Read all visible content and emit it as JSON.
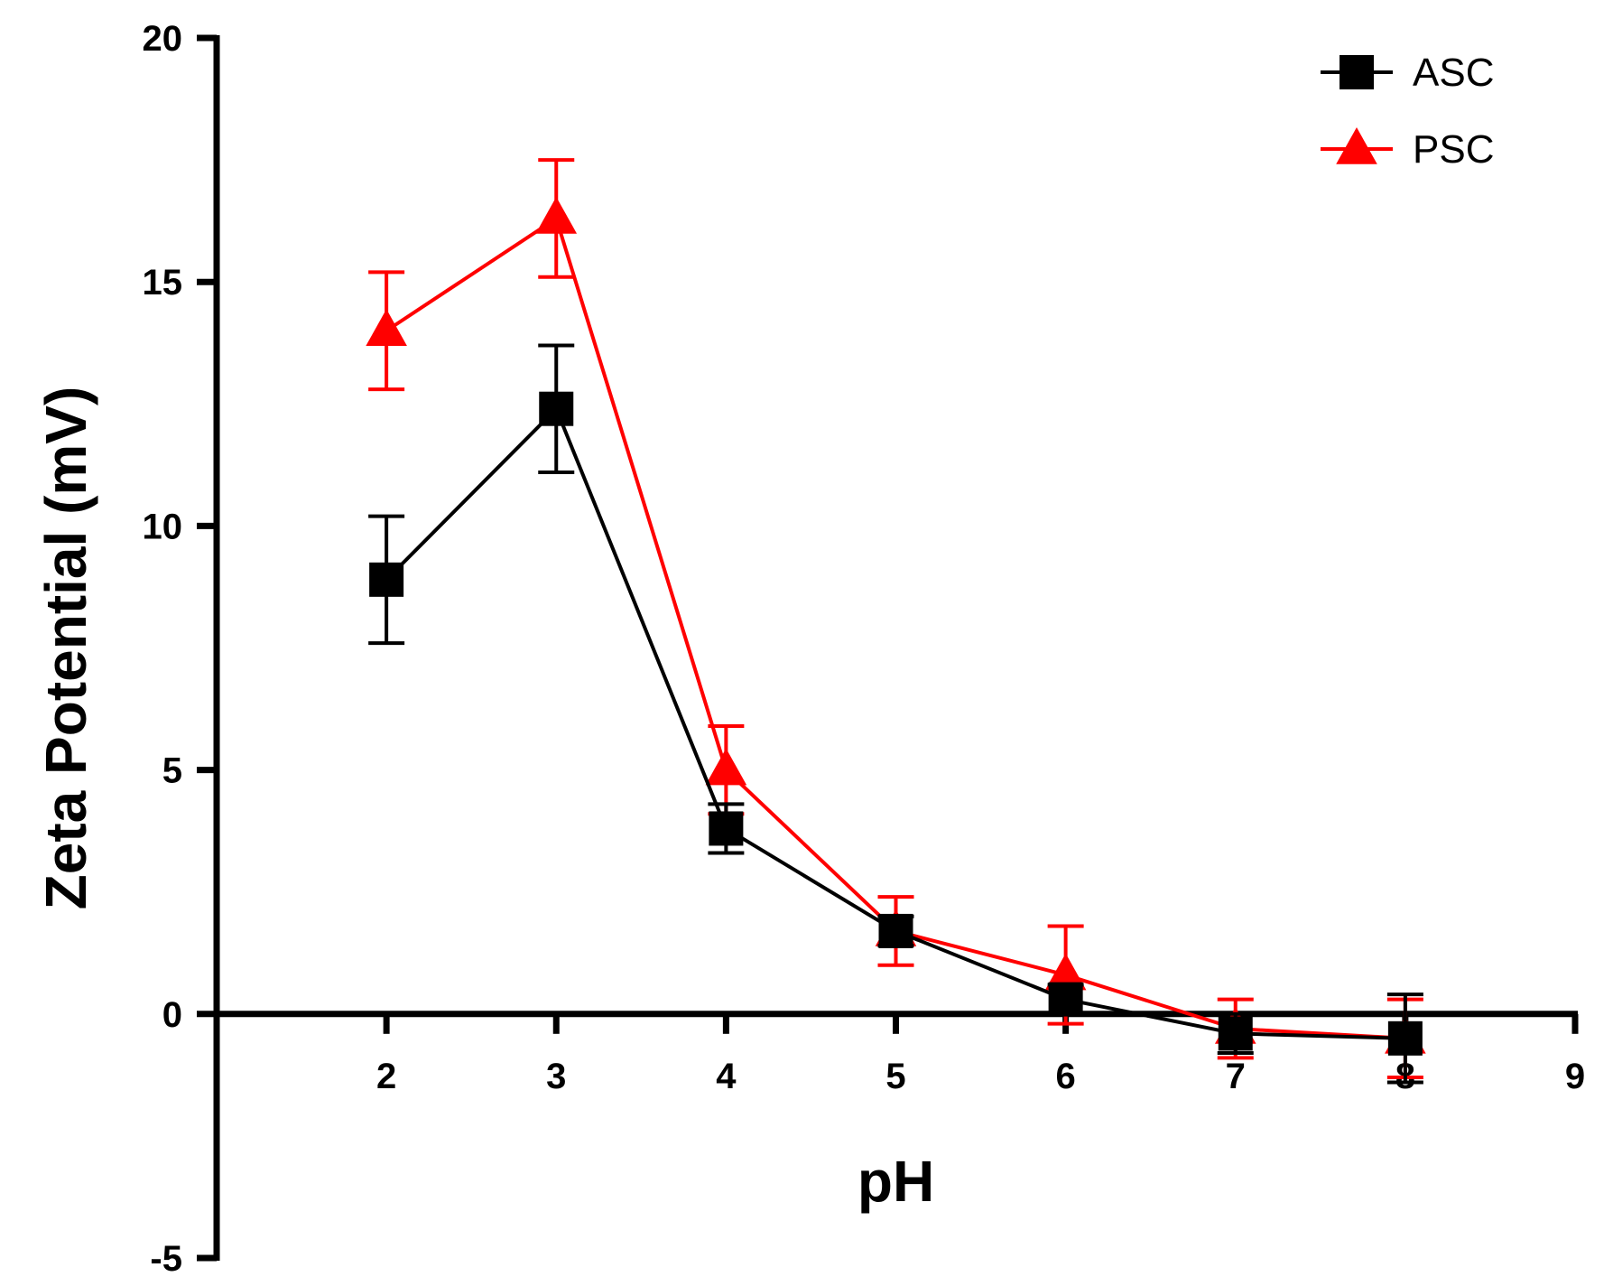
{
  "chart_data": {
    "type": "line",
    "title": "",
    "xlabel": "pH",
    "ylabel": "Zeta Potential (mV)",
    "xlim": [
      1,
      9
    ],
    "ylim": [
      -5,
      20
    ],
    "x_ticks": [
      2,
      3,
      4,
      5,
      6,
      7,
      8,
      9
    ],
    "y_ticks": [
      -5,
      0,
      5,
      10,
      15,
      20
    ],
    "x_axis_crosses_at_y": 0,
    "legend_position": "top-right",
    "series": [
      {
        "name": "ASC",
        "color": "#000000",
        "marker": "square",
        "x": [
          2,
          3,
          4,
          5,
          6,
          7,
          8
        ],
        "values": [
          8.9,
          12.4,
          3.8,
          1.7,
          0.3,
          -0.4,
          -0.5
        ],
        "errors": [
          1.3,
          1.3,
          0.5,
          0.3,
          0.3,
          0.4,
          0.9
        ]
      },
      {
        "name": "PSC",
        "color": "#ff0000",
        "marker": "triangle",
        "x": [
          2,
          3,
          4,
          5,
          6,
          7,
          8
        ],
        "values": [
          14.0,
          16.3,
          5.0,
          1.7,
          0.8,
          -0.3,
          -0.5
        ],
        "errors": [
          1.2,
          1.2,
          0.9,
          0.7,
          1.0,
          0.6,
          0.8
        ]
      }
    ]
  }
}
